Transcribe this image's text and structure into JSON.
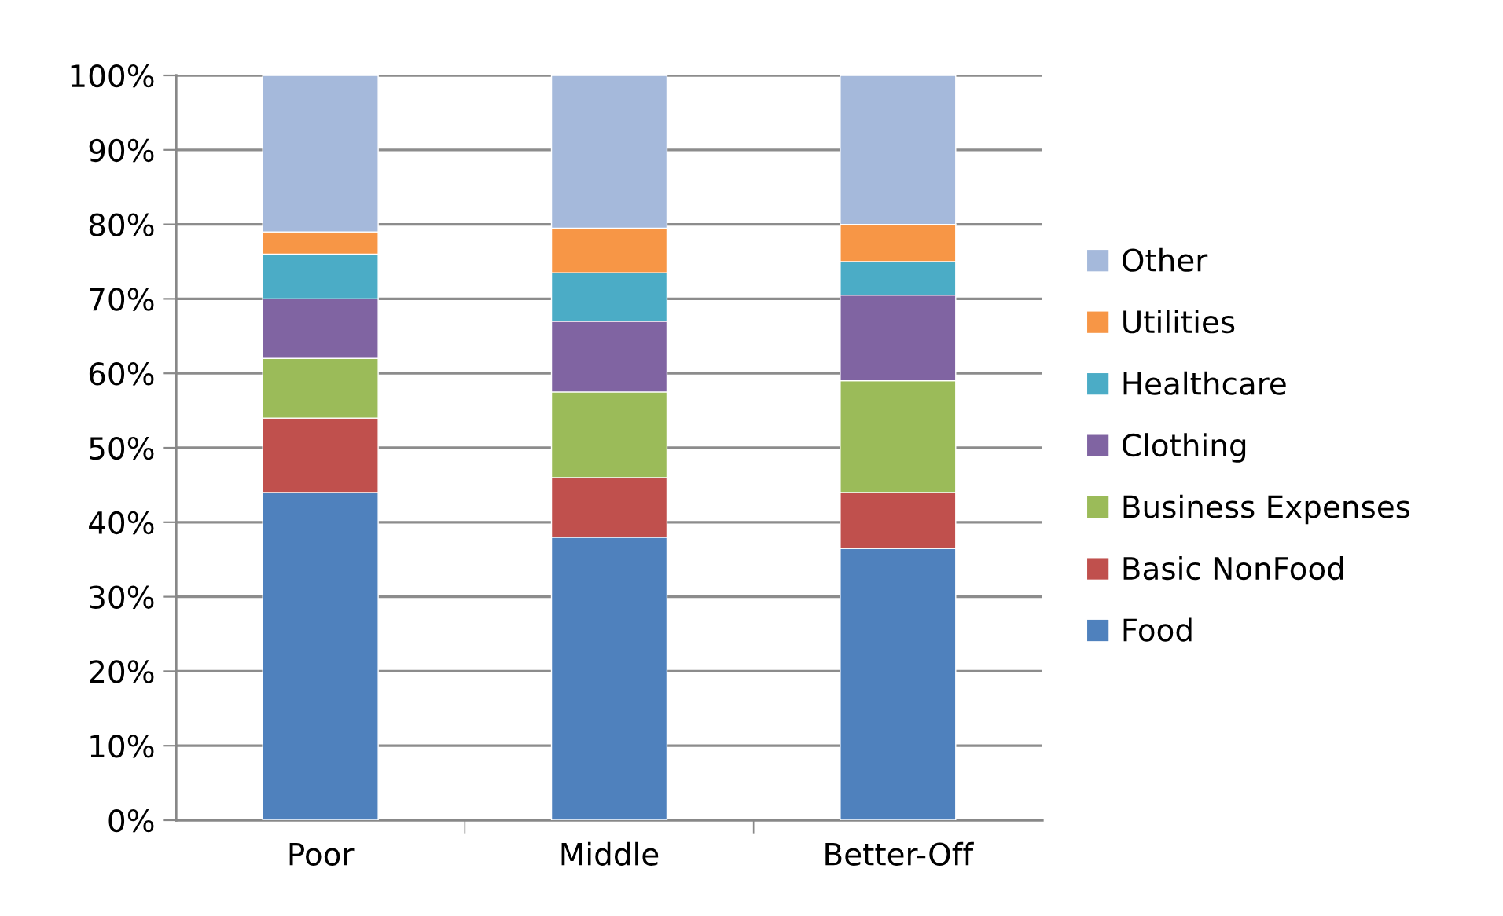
{
  "chart_data": {
    "type": "bar",
    "stacked": true,
    "categories": [
      "Poor",
      "Middle",
      "Better-Off"
    ],
    "series": [
      {
        "name": "Food",
        "color": "#4f81bd",
        "values": [
          44,
          38,
          36.5
        ]
      },
      {
        "name": "Basic NonFood",
        "color": "#c0504d",
        "values": [
          10,
          8,
          7.5
        ]
      },
      {
        "name": "Business Expenses",
        "color": "#9bbb59",
        "values": [
          8,
          11.5,
          15
        ]
      },
      {
        "name": "Clothing",
        "color": "#8064a2",
        "values": [
          8,
          9.5,
          11.5
        ]
      },
      {
        "name": "Healthcare",
        "color": "#4bacc6",
        "values": [
          6,
          6.5,
          4.5
        ]
      },
      {
        "name": "Utilities",
        "color": "#f79646",
        "values": [
          3,
          6,
          5
        ]
      },
      {
        "name": "Other",
        "color": "#a5b9db",
        "values": [
          21,
          20.5,
          20
        ]
      }
    ],
    "ylim": [
      0,
      100
    ],
    "yticks": [
      {
        "value": 0,
        "label": "0%"
      },
      {
        "value": 10,
        "label": "10%"
      },
      {
        "value": 20,
        "label": "20%"
      },
      {
        "value": 30,
        "label": "30%"
      },
      {
        "value": 40,
        "label": "40%"
      },
      {
        "value": 50,
        "label": "50%"
      },
      {
        "value": 60,
        "label": "60%"
      },
      {
        "value": 70,
        "label": "70%"
      },
      {
        "value": 80,
        "label": "80%"
      },
      {
        "value": 90,
        "label": "90%"
      },
      {
        "value": 100,
        "label": "100%"
      }
    ],
    "grid": "y",
    "legend": "right"
  }
}
